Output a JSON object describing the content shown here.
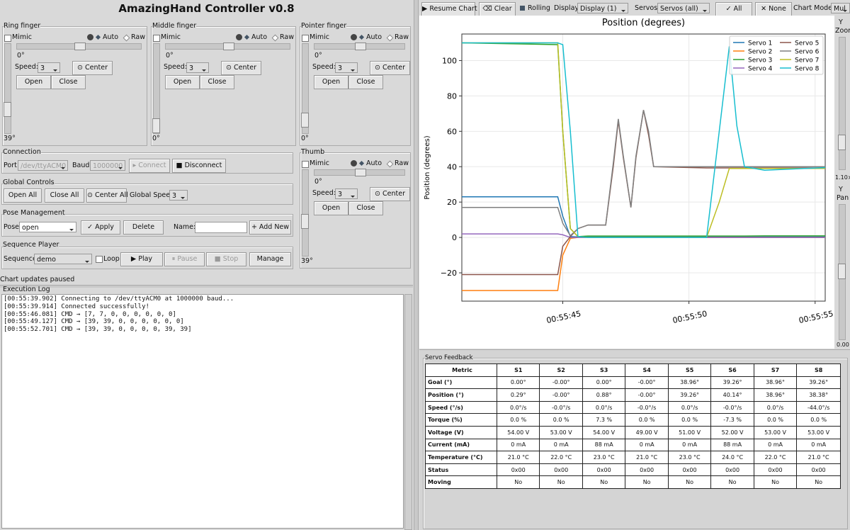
{
  "app_title": "AmazingHand Controller v0.8",
  "finger_controls": {
    "mimic": "Mimic",
    "auto": "Auto",
    "raw": "Raw",
    "speed": "Speed:",
    "center": "⊙ Center",
    "open": "Open",
    "close": "Close"
  },
  "fingers": [
    {
      "title": "Ring finger",
      "angle": "0°",
      "speed": "3",
      "vertical": "39°"
    },
    {
      "title": "Middle finger",
      "angle": "0°",
      "speed": "3",
      "vertical": "0°"
    },
    {
      "title": "Pointer finger",
      "angle": "0°",
      "speed": "3",
      "vertical": "0°"
    },
    {
      "title": "Thumb",
      "angle": "0°",
      "speed": "3",
      "vertical": "39°"
    }
  ],
  "connection": {
    "title": "Connection",
    "port_label": "Port:",
    "port": "/dev/ttyACM0",
    "baud_label": "Baud:",
    "baud": "1000000",
    "connect": "▸ Connect",
    "disconnect": "■ Disconnect"
  },
  "global_controls": {
    "title": "Global Controls",
    "open_all": "Open All",
    "close_all": "Close All",
    "center_all": "⊙ Center All",
    "speed_label": "Global Speed:",
    "speed": "3"
  },
  "pose": {
    "title": "Pose Management",
    "label": "Pose:",
    "value": "open",
    "apply": "✓ Apply",
    "delete": "Delete",
    "name_label": "Name:",
    "add": "+ Add New"
  },
  "sequence": {
    "title": "Sequence Player",
    "label": "Sequence:",
    "value": "demo",
    "loop": "Loop",
    "play": "▶ Play",
    "pause": "⏸ Pause",
    "stop": "■ Stop",
    "manage": "Manage"
  },
  "status": "Chart updates paused",
  "log": {
    "title": "Execution Log",
    "lines": [
      "[00:55:39.902] Connecting to /dev/ttyACM0 at 1000000 baud...",
      "[00:55:39.914] Connected successfully!",
      "[00:55:46.081] CMD → [7, 7, 0, 0, 0, 0, 0, 0]",
      "[00:55:49.127] CMD → [39, 39, 0, 0, 0, 0, 0, 0]",
      "[00:55:52.701] CMD → [39, 39, 0, 0, 0, 0, 39, 39]"
    ]
  },
  "toolbar": {
    "resume": "▶ Resume Chart",
    "clear": "⌫ Clear",
    "rolling": "Rolling",
    "display_label": "Display:",
    "display": "Display (1)",
    "servos_label": "Servos:",
    "servos": "Servos (all)",
    "all": "✓ All",
    "none": "✕ None",
    "mode_label": "Chart Mode:",
    "mode": "Mul"
  },
  "side": {
    "zoom_y": "Y",
    "zoom": "Zoom",
    "zoom_value": "1.10×",
    "pan_y": "Y",
    "pan": "Pan",
    "pan_value": "0.00"
  },
  "chart_data": {
    "type": "line",
    "title": "Position (degrees)",
    "y_label": "Position (degrees)",
    "x": [
      41.0,
      44.8,
      45.0,
      45.3,
      45.6,
      46.0,
      46.7,
      47.0,
      47.2,
      47.4,
      47.7,
      47.9,
      48.2,
      48.4,
      48.6,
      50.7,
      51.2,
      51.6,
      51.9,
      52.2,
      53.0,
      55.4
    ],
    "xlim": [
      41.0,
      55.4
    ],
    "xticks": [
      {
        "value": 45,
        "label": "00:55:45"
      },
      {
        "value": 50,
        "label": "00:55:50"
      },
      {
        "value": 55,
        "label": "00:55:55"
      }
    ],
    "ylim": [
      -36,
      115
    ],
    "yticks": [
      {
        "value": -20,
        "label": "−20"
      },
      0,
      20,
      40,
      60,
      80,
      100
    ],
    "grid": true,
    "legend": "upper right",
    "series": [
      {
        "name": "Servo 1",
        "color": "#1f77b4",
        "values": [
          23,
          23,
          12,
          0.5,
          0.3,
          0.3,
          0.3,
          0.3,
          0.3,
          0.3,
          0.3,
          0.3,
          0.3,
          0.3,
          0.3,
          0.3,
          0.3,
          0.3,
          0.3,
          0.3,
          0.3,
          0.3
        ]
      },
      {
        "name": "Servo 2",
        "color": "#ff7f0e",
        "values": [
          -30,
          -30,
          -10,
          -0.5,
          0,
          0,
          0,
          0,
          0,
          0,
          0,
          0,
          0,
          0,
          0,
          0,
          0,
          0,
          0,
          0,
          0,
          0
        ]
      },
      {
        "name": "Servo 3",
        "color": "#2ca02c",
        "values": [
          110,
          109,
          60,
          5,
          0.5,
          0.8,
          0.8,
          0.8,
          0.8,
          0.8,
          0.8,
          0.8,
          0.8,
          0.8,
          0.8,
          0.8,
          0.8,
          0.8,
          0.8,
          0.8,
          0.9,
          0.9
        ]
      },
      {
        "name": "Servo 4",
        "color": "#9467bd",
        "values": [
          2,
          2,
          1.5,
          0,
          0,
          0,
          0,
          0,
          0,
          0,
          0,
          0,
          0,
          0,
          0,
          0,
          0,
          0,
          0,
          0,
          0,
          0
        ]
      },
      {
        "name": "Servo 5",
        "color": "#8c564b",
        "values": [
          -21,
          -21,
          -5,
          0.5,
          5,
          7,
          7,
          40,
          66,
          45,
          17,
          45,
          72,
          58,
          40,
          39.3,
          39.3,
          39.3,
          39.3,
          39.3,
          39.3,
          39.3
        ]
      },
      {
        "name": "Servo 6",
        "color": "#7f7f7f",
        "values": [
          17,
          17,
          8,
          1,
          5,
          7,
          7,
          42,
          67,
          46,
          17,
          46,
          72,
          60,
          40,
          40,
          40,
          40,
          40,
          40,
          40,
          40
        ]
      },
      {
        "name": "Servo 7",
        "color": "#bcbd22",
        "values": [
          110,
          110,
          60,
          5,
          0.5,
          0,
          0,
          0,
          0,
          0,
          0,
          0,
          0,
          0,
          0,
          0,
          20,
          39,
          39,
          39,
          39,
          39
        ]
      },
      {
        "name": "Servo 8",
        "color": "#17becf",
        "values": [
          110,
          110,
          109,
          60,
          0.5,
          0,
          0,
          0,
          0,
          0,
          0,
          0,
          0,
          0,
          0,
          0,
          60,
          108,
          63,
          40,
          38,
          39.5
        ]
      }
    ]
  },
  "feedback": {
    "title": "Servo Feedback",
    "header": [
      "Metric",
      "S1",
      "S2",
      "S3",
      "S4",
      "S5",
      "S6",
      "S7",
      "S8"
    ],
    "rows": [
      [
        "Goal (°)",
        "0.00°",
        "-0.00°",
        "0.00°",
        "-0.00°",
        "38.96°",
        "39.26°",
        "38.96°",
        "39.26°"
      ],
      [
        "Position (°)",
        "0.29°",
        "-0.00°",
        "0.88°",
        "-0.00°",
        "39.26°",
        "40.14°",
        "38.96°",
        "38.38°"
      ],
      [
        "Speed (°/s)",
        "0.0°/s",
        "-0.0°/s",
        "0.0°/s",
        "-0.0°/s",
        "0.0°/s",
        "-0.0°/s",
        "0.0°/s",
        "-44.0°/s"
      ],
      [
        "Torque (%)",
        "0.0 %",
        "0.0 %",
        "7.3 %",
        "0.0 %",
        "0.0 %",
        "-7.3 %",
        "0.0 %",
        "0.0 %"
      ],
      [
        "Voltage (V)",
        "54.00 V",
        "53.00 V",
        "54.00 V",
        "49.00 V",
        "51.00 V",
        "52.00 V",
        "53.00 V",
        "53.00 V"
      ],
      [
        "Current (mA)",
        "0 mA",
        "0 mA",
        "88 mA",
        "0 mA",
        "0 mA",
        "88 mA",
        "0 mA",
        "0 mA"
      ],
      [
        "Temperature (°C)",
        "21.0 °C",
        "22.0 °C",
        "23.0 °C",
        "21.0 °C",
        "23.0 °C",
        "24.0 °C",
        "22.0 °C",
        "21.0 °C"
      ],
      [
        "Status",
        "0x00",
        "0x00",
        "0x00",
        "0x00",
        "0x00",
        "0x00",
        "0x00",
        "0x00"
      ],
      [
        "Moving",
        "No",
        "No",
        "No",
        "No",
        "No",
        "No",
        "No",
        "No"
      ]
    ]
  }
}
